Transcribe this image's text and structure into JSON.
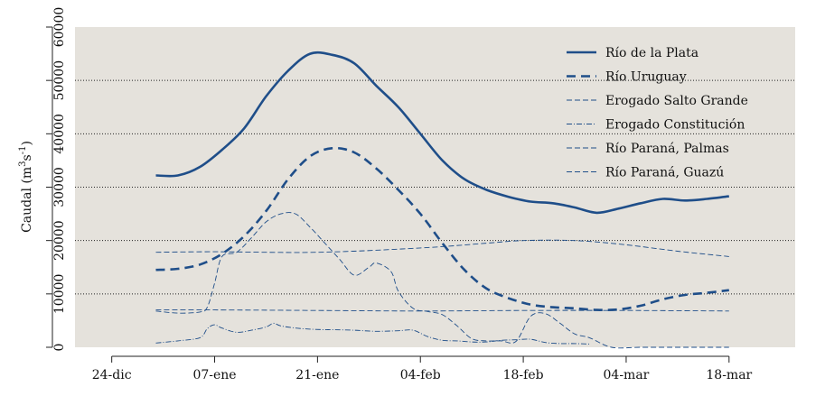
{
  "chart_data": {
    "type": "line",
    "ylabel": "Caudal (m³s⁻¹)",
    "ylabel_main": "Caudal (m",
    "ylabel_sup1": "3",
    "ylabel_mid": "s",
    "ylabel_sup2": "-1",
    "ylabel_end": ")",
    "ylim": [
      0,
      60000
    ],
    "yticks": [
      0,
      10000,
      20000,
      30000,
      40000,
      50000,
      60000
    ],
    "ytick_labels": [
      "0",
      "10000",
      "20000",
      "30000",
      "40000",
      "50000",
      "60000"
    ],
    "xlim": [
      -5,
      93
    ],
    "xticks": [
      0,
      14,
      28,
      42,
      56,
      70,
      84
    ],
    "xtick_labels": [
      "24-dic",
      "07-ene",
      "21-ene",
      "04-feb",
      "18-feb",
      "04-mar",
      "18-mar"
    ],
    "grid": "dotted horizontal",
    "legend_position": "top-right",
    "colors": {
      "series": "#1f4e89",
      "background": "#e5e2dc"
    },
    "series": [
      {
        "name": "Río de la Plata",
        "style": "solid-thick",
        "x": [
          6,
          9,
          12,
          15,
          18,
          21,
          24,
          27,
          30,
          33,
          36,
          39,
          42,
          45,
          48,
          51,
          54,
          57,
          60,
          63,
          66,
          69,
          72,
          75,
          78,
          81,
          84
        ],
        "y": [
          32200,
          32200,
          33800,
          37000,
          41000,
          47000,
          51800,
          55000,
          54800,
          53200,
          49000,
          45000,
          40000,
          35000,
          31500,
          29500,
          28200,
          27300,
          27000,
          26200,
          25200,
          26000,
          27000,
          27800,
          27500,
          27800,
          28300
        ]
      },
      {
        "name": "Río Uruguay",
        "style": "dashed-thick",
        "x": [
          6,
          9,
          12,
          15,
          18,
          21,
          24,
          27,
          30,
          33,
          36,
          39,
          42,
          45,
          48,
          51,
          54,
          57,
          60,
          63,
          66,
          69,
          72,
          75,
          78,
          81,
          84
        ],
        "y": [
          14500,
          14700,
          15500,
          17500,
          20800,
          25500,
          31500,
          35800,
          37300,
          36500,
          33500,
          29500,
          25000,
          19500,
          14500,
          11000,
          9200,
          8000,
          7500,
          7300,
          7000,
          7100,
          7800,
          9000,
          9800,
          10200,
          10700
        ]
      },
      {
        "name": "Erogado Salto Grande",
        "style": "dashed-thin",
        "x": [
          6,
          14,
          28,
          42,
          51,
          56,
          63,
          70,
          77,
          84
        ],
        "y": [
          17800,
          17900,
          17800,
          18600,
          19500,
          20000,
          20000,
          19200,
          18000,
          17000
        ]
      },
      {
        "name": "Erogado Constitución",
        "style": "dashdot-thin",
        "x": [
          6,
          9,
          12,
          13,
          14,
          15,
          17,
          19,
          21,
          22,
          23,
          25,
          27,
          29,
          30,
          33,
          36,
          39,
          41,
          43,
          45,
          47,
          49,
          51,
          53,
          55,
          57,
          59,
          61,
          63,
          65
        ],
        "y": [
          800,
          1200,
          1800,
          3500,
          4200,
          3600,
          2800,
          3200,
          3800,
          4500,
          4000,
          3600,
          3400,
          3300,
          3300,
          3200,
          3000,
          3100,
          3200,
          2000,
          1300,
          1200,
          1000,
          1000,
          1300,
          1400,
          1500,
          900,
          700,
          700,
          600
        ]
      },
      {
        "name": "Río Paraná, Palmas",
        "style": "dashed-thin",
        "x": [
          6,
          14,
          28,
          42,
          56,
          70,
          84
        ],
        "y": [
          7000,
          7000,
          6900,
          6800,
          6900,
          6900,
          6800
        ]
      },
      {
        "name": "Río Paraná, Guazú",
        "style": "dashed-thin",
        "x": [
          6,
          9,
          12,
          13,
          14,
          15,
          17,
          19,
          21,
          23,
          25,
          27,
          29,
          31,
          33,
          35,
          36,
          38,
          39,
          41,
          43,
          45,
          47,
          49,
          51,
          53,
          55,
          57,
          59,
          61,
          63,
          65,
          68,
          72,
          77,
          84
        ],
        "y": [
          6800,
          6400,
          6600,
          7500,
          12000,
          17000,
          17800,
          20500,
          23500,
          25000,
          25000,
          22500,
          19500,
          16500,
          13500,
          15000,
          15800,
          14200,
          10500,
          7300,
          6700,
          6100,
          4000,
          1600,
          1200,
          1200,
          1100,
          5800,
          6300,
          4500,
          2500,
          1800,
          0,
          0,
          0,
          0
        ]
      }
    ]
  }
}
